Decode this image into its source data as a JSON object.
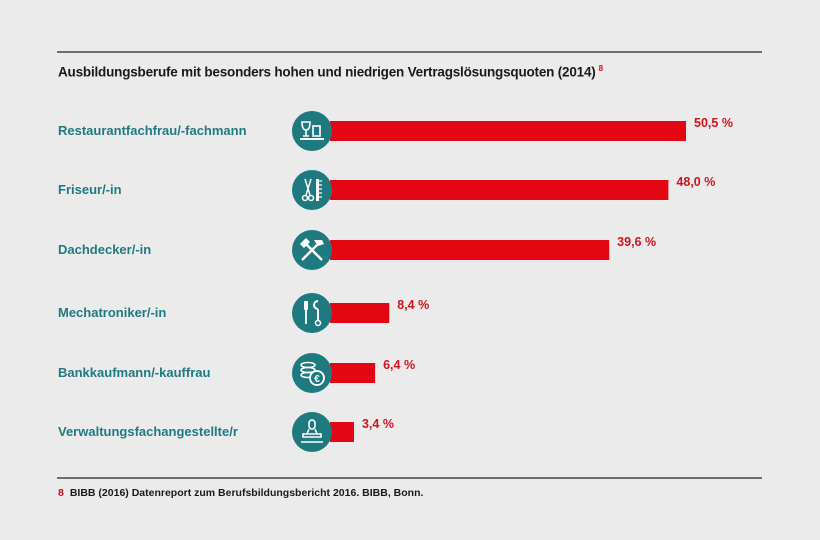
{
  "chart_data": {
    "type": "bar",
    "orientation": "horizontal",
    "title": "Ausbildungsberufe mit besonders hohen und niedrigen Vertragslösungsquoten (2014)",
    "title_footnote_marker": "8",
    "categories": [
      "Restaurantfachfrau/-fachmann",
      "Friseur/-in",
      "Dachdecker/-in",
      "Mechatroniker/-in",
      "Bankkaufmann/-kauffrau",
      "Verwaltungsfachangestellte/r"
    ],
    "values": [
      50.5,
      48.0,
      39.6,
      8.4,
      6.4,
      3.4
    ],
    "value_labels": [
      "50,5 %",
      "48,0 %",
      "39,6 %",
      "8,4 %",
      "6,4 %",
      "3,4 %"
    ],
    "icons": [
      "glass-tray-icon",
      "scissors-comb-icon",
      "hammer-icon",
      "screwdriver-wrench-icon",
      "coins-euro-icon",
      "stamp-icon"
    ],
    "xlim": [
      0,
      55
    ],
    "grid": false,
    "colors": {
      "bar": "#e30613",
      "icon_bg": "#1f7a80",
      "label": "#1f7a80",
      "value": "#d0131c",
      "background": "#ebebeb"
    }
  },
  "footnote": {
    "marker": "8",
    "text": "BIBB (2016) Datenreport zum Berufsbildungsbericht 2016. BIBB, Bonn."
  }
}
